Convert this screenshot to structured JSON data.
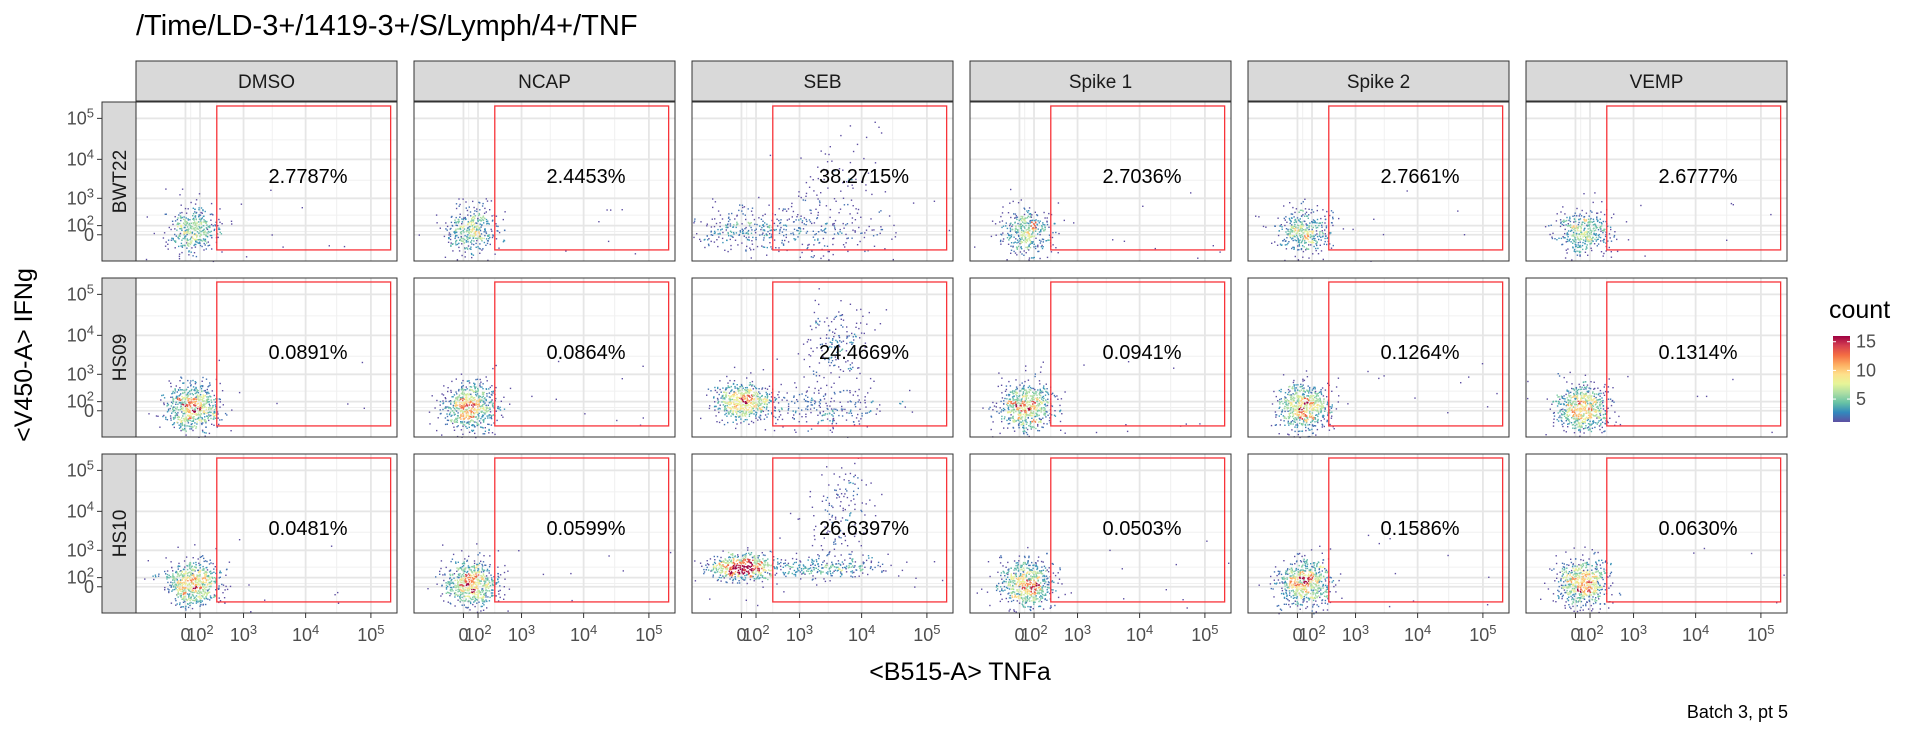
{
  "chart_data": {
    "type": "scatter",
    "title": "/Time/LD-3+/1419-3+/S/Lymph/4+/TNF",
    "xlabel": "<B515-A> TNFa",
    "ylabel": "<V450-A> IFNg",
    "caption": "Batch 3, pt 5",
    "columns": [
      "DMSO",
      "NCAP",
      "SEB",
      "Spike 1",
      "Spike 2",
      "VEMP"
    ],
    "rows": [
      "BWT22",
      "HS09",
      "HS10"
    ],
    "percentages": [
      [
        "2.7787%",
        "2.4453%",
        "38.2715%",
        "2.7036%",
        "2.7661%",
        "2.6777%"
      ],
      [
        "0.0891%",
        "0.0864%",
        "24.4669%",
        "0.0941%",
        "0.1264%",
        "0.1314%"
      ],
      [
        "0.0481%",
        "0.0599%",
        "26.6397%",
        "0.0503%",
        "0.1586%",
        "0.0630%"
      ]
    ],
    "x_ticks": [
      {
        "value": 0,
        "text": "0"
      },
      {
        "value": 100,
        "base": "10",
        "exp": "2"
      },
      {
        "value": 1000,
        "base": "10",
        "exp": "3"
      },
      {
        "value": 10000,
        "base": "10",
        "exp": "4"
      },
      {
        "value": 100000,
        "base": "10",
        "exp": "5"
      }
    ],
    "y_ticks": [
      {
        "value": 0,
        "text": "0"
      },
      {
        "value": 100,
        "base": "10",
        "exp": "2"
      },
      {
        "value": 1000,
        "base": "10",
        "exp": "3"
      },
      {
        "value": 10000,
        "base": "10",
        "exp": "4"
      },
      {
        "value": 100000,
        "base": "10",
        "exp": "5"
      }
    ],
    "gate": {
      "x_min": 300,
      "x_max": 200000,
      "y_min": -200,
      "y_max": 200000,
      "color": "#f8343a"
    },
    "x_scale": "biexponential",
    "y_scale": "biexponential",
    "grid": true,
    "legend": {
      "title": "count",
      "position": "right",
      "type": "colorbar",
      "palette": "Spectral",
      "range": [
        1,
        16
      ],
      "breaks": [
        {
          "value": 5,
          "text": "5"
        },
        {
          "value": 10,
          "text": "10"
        },
        {
          "value": 15,
          "text": "15"
        }
      ],
      "colors": [
        "#5e4fa2",
        "#3288bd",
        "#66c2a5",
        "#abdda4",
        "#e6f598",
        "#fee08b",
        "#fdae61",
        "#f46d43",
        "#d53e4f",
        "#9e0142"
      ]
    }
  }
}
